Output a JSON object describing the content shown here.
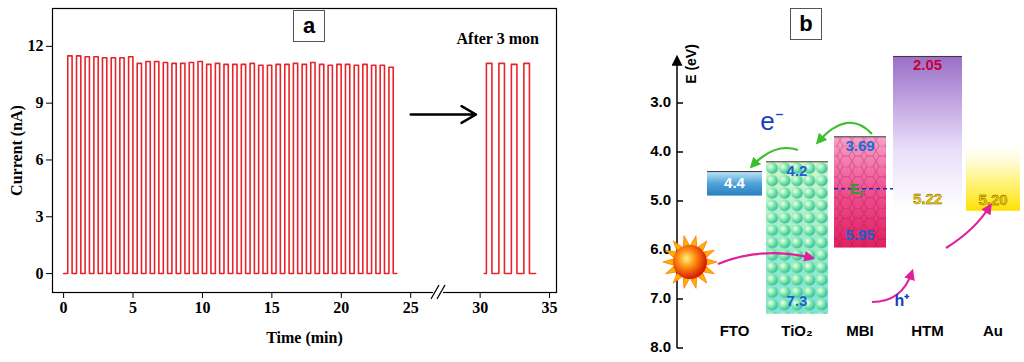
{
  "chart_data": {
    "type": "line",
    "panel_label": "a",
    "x_label": "Time (min)",
    "y_label": "Current (nA)",
    "annotation": "After 3 mon",
    "color": "#e8242b",
    "line_style": "step",
    "xlim": [
      -0.8,
      35.5
    ],
    "xticks": [
      0,
      5,
      10,
      15,
      20,
      25,
      30,
      35
    ],
    "ylim": [
      -1,
      14
    ],
    "yticks": [
      0,
      3,
      6,
      9,
      12
    ],
    "x": [
      0,
      0.3,
      0.61,
      0.93,
      1.24,
      1.55,
      1.86,
      2.18,
      2.49,
      2.8,
      3.11,
      3.43,
      3.74,
      4.05,
      4.36,
      4.68,
      4.99,
      5.3,
      5.61,
      5.93,
      6.24,
      6.55,
      6.86,
      7.18,
      7.49,
      7.8,
      8.11,
      8.43,
      8.74,
      9.05,
      9.36,
      9.68,
      9.99,
      10.3,
      10.61,
      10.93,
      11.24,
      11.55,
      11.86,
      12.18,
      12.49,
      12.8,
      13.11,
      13.43,
      13.74,
      14.05,
      14.36,
      14.68,
      14.99,
      15.3,
      15.61,
      15.93,
      16.24,
      16.55,
      16.86,
      17.18,
      17.49,
      17.8,
      18.11,
      18.43,
      18.74,
      19.05,
      19.36,
      19.68,
      19.99,
      20.3,
      20.61,
      20.93,
      21.24,
      21.55,
      21.86,
      22.18,
      22.49,
      22.8,
      23.11,
      23.43,
      23.74,
      24,
      27,
      30.3,
      30.45,
      30.85,
      31.35,
      31.75,
      32.25,
      32.65,
      33.15,
      33.55,
      34
    ],
    "values": [
      0,
      11.5,
      0,
      11.5,
      0,
      11.45,
      0,
      11.45,
      0,
      11.4,
      0,
      11.4,
      0,
      11.4,
      0,
      11.45,
      0,
      11.1,
      0,
      11.2,
      0,
      11.2,
      0,
      11.15,
      0,
      11.1,
      0,
      11.1,
      0,
      11.15,
      0,
      11.2,
      0,
      11.05,
      0,
      11.1,
      0,
      11.05,
      0,
      11.05,
      0,
      11.05,
      0,
      11.1,
      0,
      11,
      0,
      11,
      0,
      11.05,
      0,
      11.05,
      0,
      11.1,
      0,
      11.05,
      0,
      11.15,
      0,
      11.05,
      0,
      11,
      0,
      11.05,
      0,
      11.05,
      0,
      11,
      0,
      11.05,
      0,
      11,
      0,
      11,
      0,
      10.9,
      0,
      0,
      null,
      0,
      11.1,
      0,
      11.1,
      0,
      11.05,
      0,
      11.1,
      0,
      0
    ]
  },
  "diagram": {
    "panel_label": "b",
    "axis_label": "E (eV)",
    "axis_ticks": [
      {
        "value": 3,
        "label": "3.0"
      },
      {
        "value": 4,
        "label": "4.0"
      },
      {
        "value": 5,
        "label": "5.0"
      },
      {
        "value": 6,
        "label": "6.0"
      },
      {
        "value": 7,
        "label": "7.0"
      },
      {
        "value": 8,
        "label": "8.0"
      }
    ],
    "layers": [
      {
        "name": "FTO",
        "levels": [
          4.4
        ]
      },
      {
        "name": "TiO₂",
        "levels": [
          4.2,
          7.3
        ]
      },
      {
        "name": "MBI",
        "levels": [
          3.69,
          5.95
        ],
        "fermi_level": {
          "label": "E",
          "subscript": "F",
          "value": 4.75
        }
      },
      {
        "name": "HTM",
        "levels": [
          2.05,
          5.22
        ]
      },
      {
        "name": "Au",
        "levels": [
          {
            "value": 5.2,
            "label": "5.20"
          }
        ]
      }
    ],
    "electron_label": "e⁻",
    "hole_label": "h⁺"
  }
}
